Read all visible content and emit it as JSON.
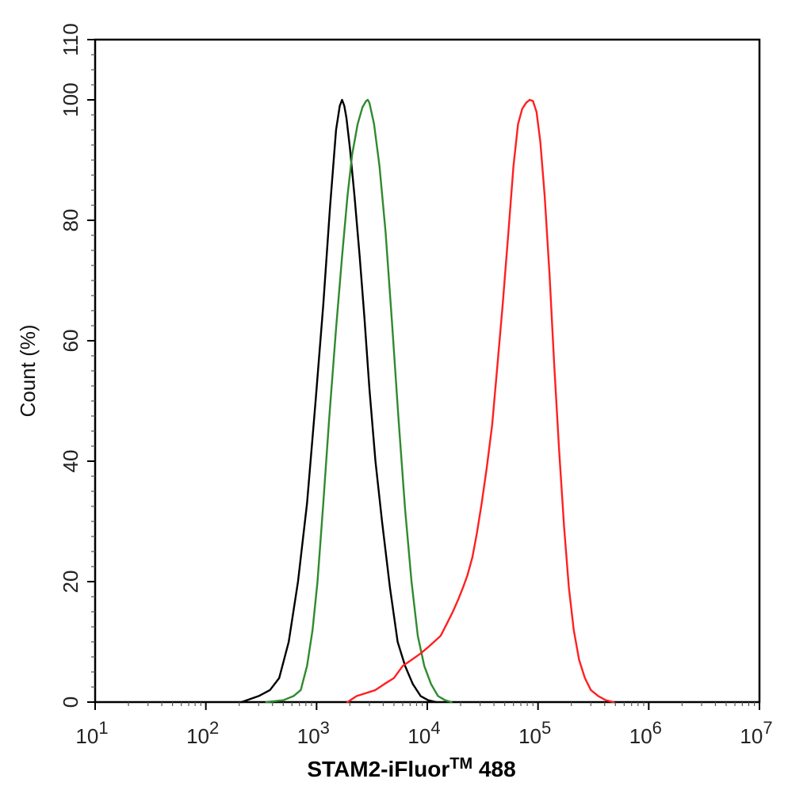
{
  "chart_data": {
    "type": "line",
    "xlabel_main": "STAM2-iFluor",
    "xlabel_tm": "TM",
    "xlabel_tail": " 488",
    "ylabel": "Count  (%)",
    "x_scale": "log",
    "xlim": [
      10,
      10000000
    ],
    "ylim": [
      0,
      110
    ],
    "grid": false,
    "legend": "none",
    "x_ticks": [
      {
        "base": "10",
        "exp": "1",
        "value": 10
      },
      {
        "base": "10",
        "exp": "2",
        "value": 100
      },
      {
        "base": "10",
        "exp": "3",
        "value": 1000
      },
      {
        "base": "10",
        "exp": "4",
        "value": 10000
      },
      {
        "base": "10",
        "exp": "5",
        "value": 100000
      },
      {
        "base": "10",
        "exp": "6",
        "value": 1000000
      },
      {
        "base": "10",
        "exp": "7",
        "value": 10000000
      }
    ],
    "y_ticks": [
      "0",
      "20",
      "40",
      "60",
      "80",
      "100",
      "110"
    ],
    "series": [
      {
        "color": "#000000",
        "x": [
          210,
          300,
          380,
          460,
          560,
          680,
          820,
          980,
          1150,
          1320,
          1500,
          1620,
          1700,
          1780,
          1860,
          2000,
          2200,
          2450,
          2700,
          3000,
          3400,
          3900,
          4600,
          5400,
          6300,
          7400,
          8700,
          10200,
          12000
        ],
        "y": [
          0,
          1,
          2,
          4,
          10,
          20,
          33,
          50,
          66,
          82,
          95,
          99,
          100,
          99,
          97,
          92,
          84,
          74,
          64,
          52,
          40,
          30,
          19,
          10,
          6,
          3,
          1,
          0.3,
          0
        ]
      },
      {
        "color": "#2e8b2e",
        "x": [
          350,
          500,
          620,
          720,
          820,
          920,
          1020,
          1150,
          1300,
          1500,
          1700,
          1900,
          2100,
          2350,
          2600,
          2800,
          2900,
          3000,
          3300,
          3700,
          4200,
          4800,
          5500,
          6300,
          7200,
          8200,
          9400,
          10800,
          12500,
          14500,
          16500
        ],
        "y": [
          0,
          0.3,
          1,
          2,
          6,
          12,
          20,
          33,
          47,
          62,
          74,
          84,
          91,
          96,
          98.8,
          99.8,
          100,
          99.5,
          96,
          89,
          78,
          63,
          47,
          32,
          20,
          11,
          6,
          3,
          1,
          0.3,
          0
        ]
      },
      {
        "color": "#ff2020",
        "x": [
          1900,
          2300,
          2800,
          3400,
          4100,
          5000,
          6000,
          7200,
          8600,
          10000,
          11500,
          13200,
          15000,
          17000,
          19000,
          21000,
          23000,
          25500,
          28000,
          31000,
          34500,
          38500,
          43000,
          48000,
          54000,
          60000,
          66000,
          72000,
          78000,
          84000,
          90000,
          97000,
          105000,
          115000,
          127000,
          140000,
          155000,
          172000,
          190000,
          210000,
          235000,
          265000,
          300000,
          350000,
          410000,
          480000
        ],
        "y": [
          0,
          1,
          1.5,
          2,
          3,
          4,
          6,
          7,
          8,
          9,
          10,
          11,
          13,
          15,
          17,
          19,
          21,
          24,
          28,
          33,
          39,
          46,
          56,
          66,
          78,
          89,
          96,
          98.5,
          99.5,
          100,
          99.8,
          98,
          93,
          84,
          71,
          56,
          42,
          29,
          19,
          12,
          7,
          4,
          2,
          1,
          0.3,
          0
        ]
      }
    ]
  }
}
